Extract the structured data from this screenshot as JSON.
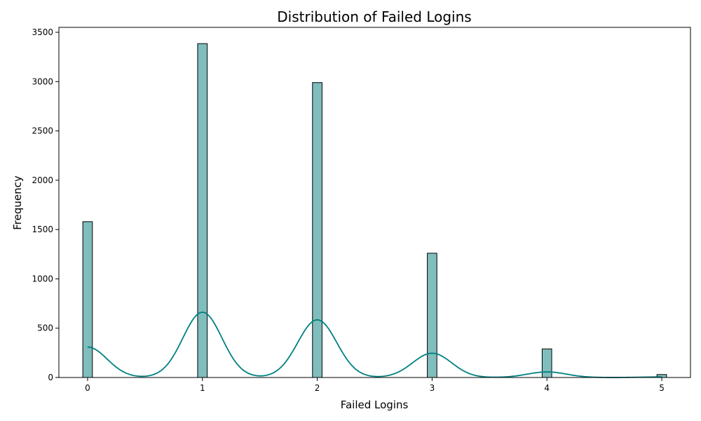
{
  "chart_data": {
    "type": "bar",
    "title": "Distribution of Failed Logins",
    "xlabel": "Failed Logins",
    "ylabel": "Frequency",
    "xlim": [
      -0.25,
      5.25
    ],
    "ylim": [
      0,
      3550
    ],
    "x_ticks": [
      0,
      1,
      2,
      3,
      4,
      5
    ],
    "y_ticks": [
      0,
      500,
      1000,
      1500,
      2000,
      2500,
      3000,
      3500
    ],
    "grid": false,
    "bar_width": 0.0833,
    "bars": [
      {
        "x": 0,
        "value": 1580
      },
      {
        "x": 1,
        "value": 3385
      },
      {
        "x": 2,
        "value": 2990
      },
      {
        "x": 3,
        "value": 1260
      },
      {
        "x": 4,
        "value": 290
      },
      {
        "x": 5,
        "value": 30
      }
    ],
    "kde": {
      "bandwidth": 0.17,
      "counts": [
        1580,
        3385,
        2990,
        1260,
        290,
        30
      ],
      "scale": 0.0833
    },
    "colors": {
      "bar_fill": "#80bdbd",
      "bar_edge": "#000000",
      "kde_line": "#008080"
    }
  }
}
